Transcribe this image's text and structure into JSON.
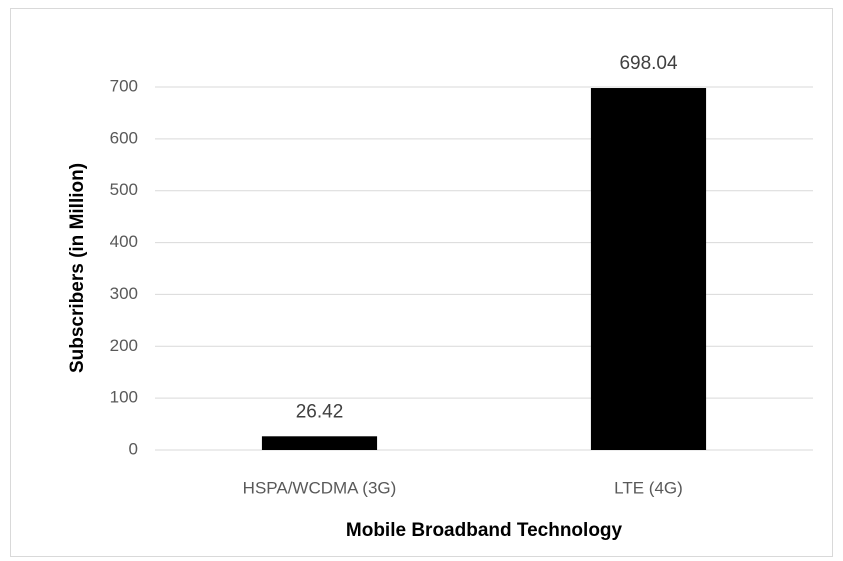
{
  "chart_data": {
    "type": "bar",
    "categories": [
      "HSPA/WCDMA (3G)",
      "LTE (4G)"
    ],
    "values": [
      26.42,
      698.04
    ],
    "color": "#000000",
    "xlabel": "Mobile Broadband Technology",
    "ylabel": "Subscribers (in Million)",
    "ylim": [
      0,
      700
    ],
    "yticks": [
      0,
      100,
      200,
      300,
      400,
      500,
      600,
      700
    ],
    "grid": true
  }
}
